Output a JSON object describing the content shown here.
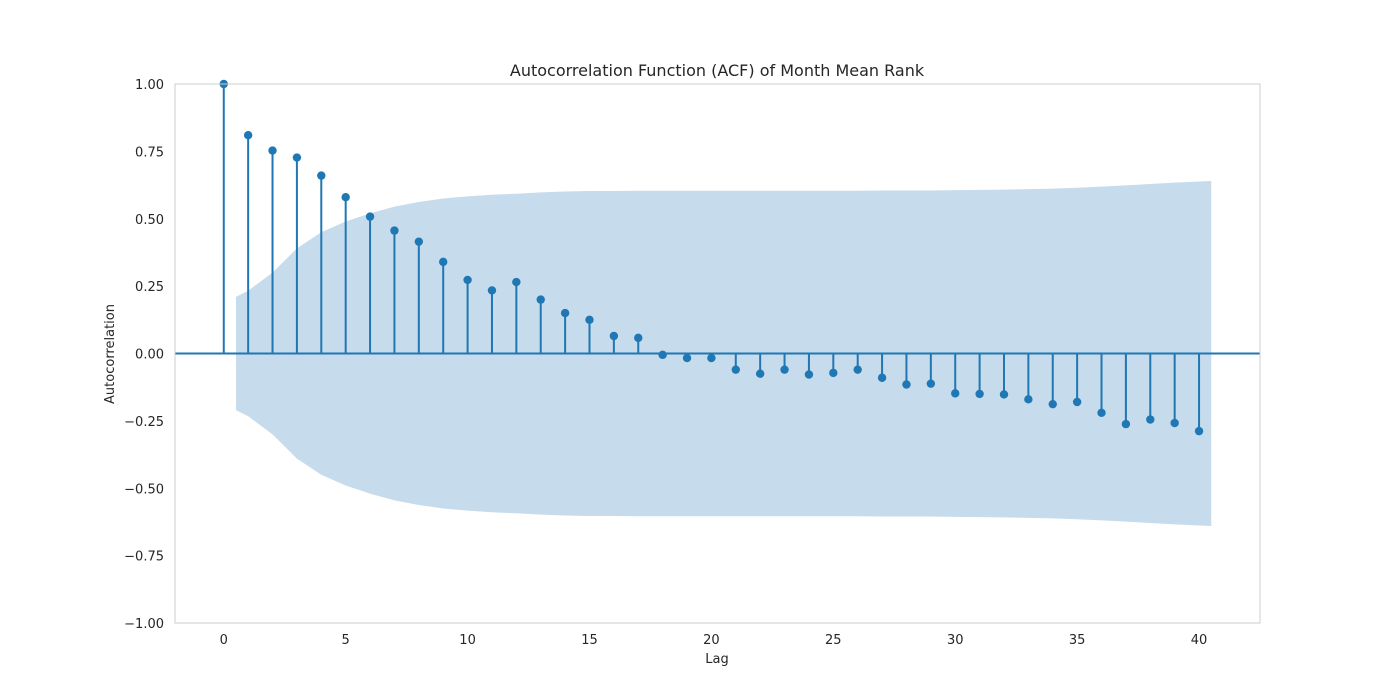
{
  "chart_data": {
    "type": "stem",
    "title": "Autocorrelation Function (ACF) of Month Mean Rank",
    "xlabel": "Lag",
    "ylabel": "Autocorrelation",
    "xlim": [
      -2,
      42.5
    ],
    "ylim": [
      -1.0,
      1.0
    ],
    "xticks": [
      0,
      5,
      10,
      15,
      20,
      25,
      30,
      35,
      40
    ],
    "xtick_labels": [
      "0",
      "5",
      "10",
      "15",
      "20",
      "25",
      "30",
      "35",
      "40"
    ],
    "yticks": [
      1.0,
      0.75,
      0.5,
      0.25,
      0.0,
      -0.25,
      -0.5,
      -0.75,
      -1.0
    ],
    "ytick_labels": [
      "1.00",
      "0.75",
      "0.50",
      "0.25",
      "0.00",
      "−0.25",
      "−0.50",
      "−0.75",
      "−1.00"
    ],
    "grid": false,
    "lags": [
      0,
      1,
      2,
      3,
      4,
      5,
      6,
      7,
      8,
      9,
      10,
      11,
      12,
      13,
      14,
      15,
      16,
      17,
      18,
      19,
      20,
      21,
      22,
      23,
      24,
      25,
      26,
      27,
      28,
      29,
      30,
      31,
      32,
      33,
      34,
      35,
      36,
      37,
      38,
      39,
      40
    ],
    "acf": [
      1.0,
      0.81,
      0.753,
      0.727,
      0.66,
      0.58,
      0.508,
      0.456,
      0.415,
      0.34,
      0.273,
      0.234,
      0.265,
      0.2,
      0.15,
      0.125,
      0.065,
      0.058,
      -0.005,
      -0.017,
      -0.017,
      -0.06,
      -0.075,
      -0.06,
      -0.078,
      -0.072,
      -0.06,
      -0.09,
      -0.115,
      -0.112,
      -0.148,
      -0.15,
      -0.152,
      -0.17,
      -0.188,
      -0.18,
      -0.22,
      -0.262,
      -0.245,
      -0.258,
      -0.288
    ],
    "confidence_band": {
      "x": [
        0.5,
        1,
        2,
        3,
        4,
        5,
        6,
        7,
        8,
        9,
        10,
        11,
        12,
        13,
        14,
        15,
        16,
        17,
        18,
        19,
        20,
        21,
        22,
        23,
        24,
        25,
        26,
        27,
        28,
        29,
        30,
        31,
        32,
        33,
        34,
        35,
        36,
        37,
        38,
        39,
        40,
        40.5
      ],
      "upper": [
        0.21,
        0.233,
        0.3,
        0.39,
        0.45,
        0.49,
        0.52,
        0.545,
        0.562,
        0.575,
        0.583,
        0.589,
        0.593,
        0.598,
        0.601,
        0.603,
        0.603,
        0.604,
        0.604,
        0.604,
        0.604,
        0.604,
        0.604,
        0.604,
        0.604,
        0.604,
        0.604,
        0.605,
        0.605,
        0.605,
        0.606,
        0.607,
        0.608,
        0.61,
        0.612,
        0.615,
        0.619,
        0.624,
        0.629,
        0.634,
        0.638,
        0.64
      ],
      "color": "#c6dbec"
    },
    "colors": {
      "stem": "#1f77b4",
      "band": "#c6dbec",
      "axes": "#cccccc",
      "text": "#262626"
    }
  }
}
